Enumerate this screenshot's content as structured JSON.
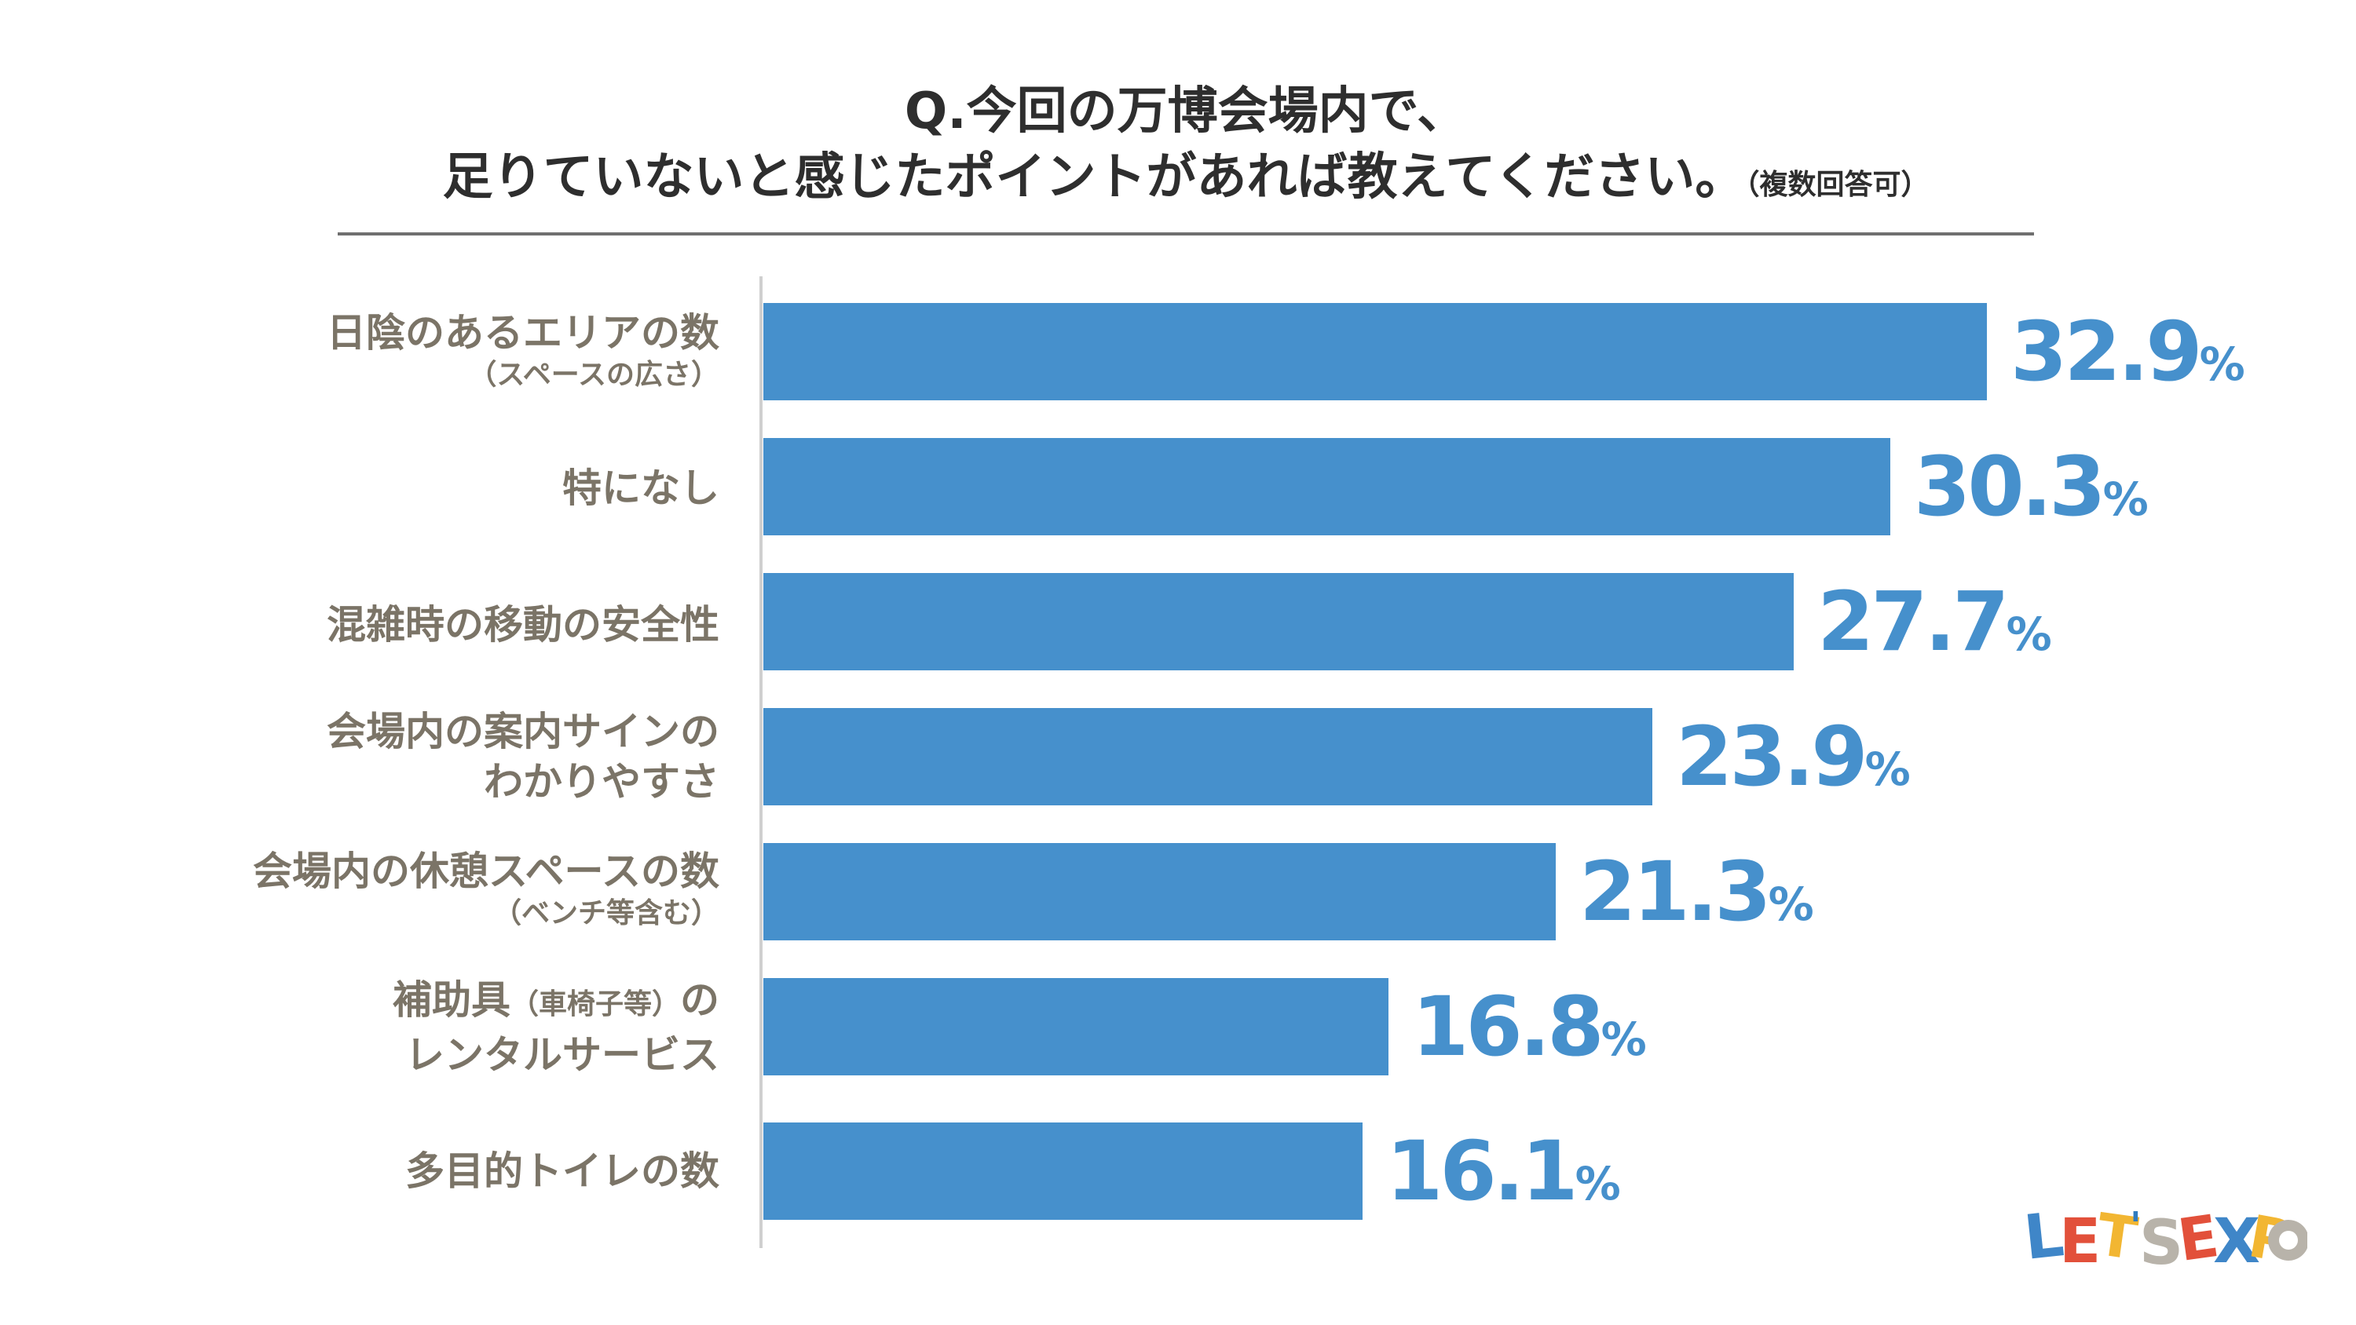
{
  "title": {
    "line1": "Q.今回の万博会場内で、",
    "line2": "足りていないと感じたポイントがあれば教えてください。",
    "note": "（複数回答可）"
  },
  "logo": {
    "text": "LET'S EXPO"
  },
  "chart_data": {
    "type": "bar",
    "orientation": "horizontal",
    "title": "Q.今回の万博会場内で、足りていないと感じたポイントがあれば教えてください。（複数回答可）",
    "unit": "%",
    "xlim": [
      0,
      60
    ],
    "grid": false,
    "categories": [
      {
        "main": "日陰のあるエリアの数",
        "sub": "（スペースの広さ）"
      },
      {
        "main": "特になし"
      },
      {
        "main": "混雑時の移動の安全性"
      },
      {
        "main": "会場内の案内サインの",
        "main2": "わかりやすさ"
      },
      {
        "main": "会場内の休憩スペースの数",
        "sub": "（ベンチ等含む）"
      },
      {
        "main_a": "補助具",
        "paren": "（車椅子等）",
        "main_b": "の",
        "main2": "レンタルサービス"
      },
      {
        "main": "多目的トイレの数"
      }
    ],
    "values": [
      32.9,
      30.3,
      27.7,
      23.9,
      21.3,
      16.8,
      16.1
    ],
    "value_labels": [
      "32.9",
      "30.3",
      "27.7",
      "23.9",
      "21.3",
      "16.8",
      "16.1"
    ],
    "pct_symbol": "%",
    "bar_color": "#4690cc"
  }
}
